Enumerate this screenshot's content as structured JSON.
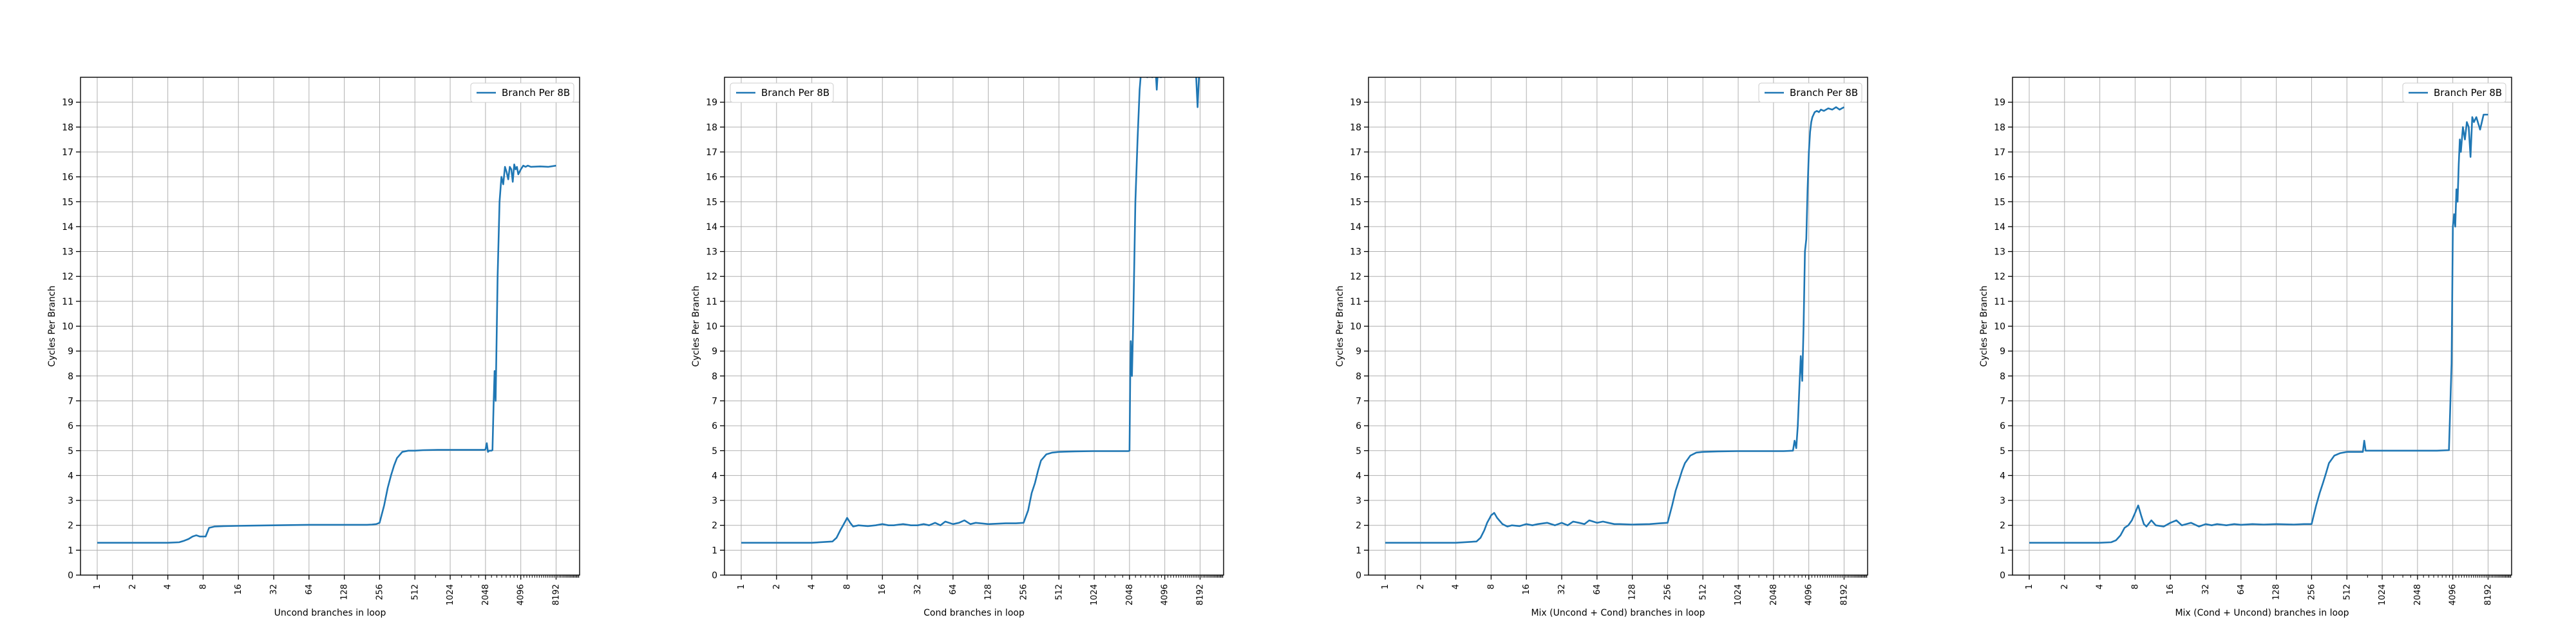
{
  "chart_data": [
    {
      "type": "line",
      "xlabel": "Uncond branches in loop",
      "ylabel": "Cycles Per Branch",
      "x_scale": "log2",
      "xlim": [
        0.72,
        13000
      ],
      "ylim": [
        0,
        20
      ],
      "x_ticks": [
        1,
        2,
        4,
        8,
        16,
        32,
        64,
        128,
        256,
        512,
        1024,
        2048,
        4096,
        8192
      ],
      "y_ticks": [
        0,
        1,
        2,
        3,
        4,
        5,
        6,
        7,
        8,
        9,
        10,
        11,
        12,
        13,
        14,
        15,
        16,
        17,
        18,
        19
      ],
      "grid": true,
      "legend_position": "upper right",
      "series": [
        {
          "name": "Branch Per 8B",
          "color": "#1f77b4",
          "x": [
            1,
            2,
            4,
            5,
            5.5,
            6,
            6.5,
            7,
            7.5,
            8,
            8.4,
            9,
            10,
            12,
            16,
            32,
            64,
            128,
            200,
            220,
            240,
            256,
            280,
            300,
            320,
            340,
            360,
            400,
            450,
            512,
            600,
            800,
            1024,
            1500,
            2000,
            2048,
            2100,
            2150,
            2200,
            2250,
            2300,
            2350,
            2400,
            2450,
            2500,
            2600,
            2700,
            2800,
            2900,
            3000,
            3100,
            3200,
            3300,
            3400,
            3500,
            3600,
            3700,
            3800,
            3900,
            4096,
            4300,
            4500,
            4700,
            5000,
            6000,
            7000,
            8192
          ],
          "y": [
            1.3,
            1.3,
            1.3,
            1.32,
            1.38,
            1.45,
            1.55,
            1.6,
            1.55,
            1.55,
            1.55,
            1.9,
            1.95,
            1.97,
            1.98,
            2.0,
            2.02,
            2.02,
            2.02,
            2.03,
            2.05,
            2.1,
            2.8,
            3.5,
            4.0,
            4.4,
            4.7,
            4.95,
            5.0,
            5.0,
            5.02,
            5.03,
            5.03,
            5.03,
            5.03,
            5.05,
            5.3,
            4.95,
            5.0,
            5.0,
            5.0,
            5.02,
            6.8,
            8.2,
            7.0,
            12.0,
            15.0,
            16.0,
            15.7,
            16.4,
            16.2,
            15.9,
            16.4,
            16.3,
            15.8,
            16.5,
            16.3,
            16.4,
            16.1,
            16.3,
            16.45,
            16.4,
            16.45,
            16.4,
            16.42,
            16.4,
            16.45
          ]
        }
      ]
    },
    {
      "type": "line",
      "xlabel": "Cond branches in loop",
      "ylabel": "Cycles Per Branch",
      "x_scale": "log2",
      "xlim": [
        0.72,
        13000
      ],
      "ylim": [
        0,
        20
      ],
      "x_ticks": [
        1,
        2,
        4,
        8,
        16,
        32,
        64,
        128,
        256,
        512,
        1024,
        2048,
        4096,
        8192
      ],
      "y_ticks": [
        0,
        1,
        2,
        3,
        4,
        5,
        6,
        7,
        8,
        9,
        10,
        11,
        12,
        13,
        14,
        15,
        16,
        17,
        18,
        19
      ],
      "grid": true,
      "legend_position": "upper left",
      "series": [
        {
          "name": "Branch Per 8B",
          "color": "#1f77b4",
          "x": [
            1,
            2,
            4,
            6,
            6.5,
            7,
            7.4,
            7.8,
            8,
            8.5,
            9,
            10,
            12,
            14,
            16,
            18,
            20,
            24,
            28,
            32,
            36,
            40,
            45,
            50,
            55,
            64,
            72,
            80,
            90,
            100,
            128,
            180,
            220,
            256,
            280,
            300,
            320,
            340,
            360,
            400,
            450,
            512,
            700,
            1000,
            1500,
            2000,
            2048,
            2080,
            2100,
            2150,
            2200,
            2250,
            2300,
            2400,
            2500,
            2600,
            2700,
            2800,
            2900,
            3000,
            3100,
            3200,
            3300,
            3400,
            3500,
            3600,
            3700,
            3800,
            4000,
            4300,
            4600,
            5000,
            5500,
            6000,
            6500,
            7000,
            7500,
            7800,
            8192
          ],
          "y": [
            1.3,
            1.3,
            1.3,
            1.35,
            1.5,
            1.8,
            2.0,
            2.2,
            2.3,
            2.1,
            1.95,
            2.0,
            1.97,
            2.0,
            2.05,
            2.0,
            2.0,
            2.05,
            2.0,
            2.0,
            2.05,
            2.0,
            2.1,
            2.0,
            2.15,
            2.05,
            2.1,
            2.2,
            2.05,
            2.1,
            2.05,
            2.08,
            2.08,
            2.1,
            2.6,
            3.3,
            3.7,
            4.2,
            4.6,
            4.85,
            4.92,
            4.95,
            4.97,
            4.98,
            4.98,
            4.98,
            5.0,
            8.2,
            9.4,
            8.0,
            10.0,
            12.5,
            15.0,
            17.5,
            19.5,
            20.5,
            21.5,
            21.5,
            20.0,
            20.5,
            21.0,
            20.0,
            20.5,
            20.5,
            19.5,
            20.5,
            21.0,
            20.0,
            20.5,
            21.0,
            21.0,
            21.0,
            21.0,
            21.0,
            21.0,
            21.0,
            20.5,
            18.8,
            21.0
          ]
        }
      ]
    },
    {
      "type": "line",
      "xlabel": "Mix (Uncond + Cond) branches in loop",
      "ylabel": "Cycles Per Branch",
      "x_scale": "log2",
      "xlim": [
        0.72,
        13000
      ],
      "ylim": [
        0,
        20
      ],
      "x_ticks": [
        1,
        2,
        4,
        8,
        16,
        32,
        64,
        128,
        256,
        512,
        1024,
        2048,
        4096,
        8192
      ],
      "y_ticks": [
        0,
        1,
        2,
        3,
        4,
        5,
        6,
        7,
        8,
        9,
        10,
        11,
        12,
        13,
        14,
        15,
        16,
        17,
        18,
        19
      ],
      "grid": true,
      "legend_position": "upper right",
      "series": [
        {
          "name": "Branch Per 8B",
          "color": "#1f77b4",
          "x": [
            1,
            2,
            4,
            6,
            6.5,
            7,
            7.4,
            7.8,
            8,
            8.5,
            9,
            10,
            11,
            12,
            14,
            16,
            18,
            20,
            24,
            28,
            32,
            36,
            40,
            45,
            50,
            55,
            64,
            72,
            80,
            90,
            100,
            128,
            180,
            220,
            256,
            280,
            300,
            320,
            340,
            360,
            400,
            450,
            512,
            700,
            1000,
            1500,
            2000,
            2500,
            3000,
            3100,
            3200,
            3300,
            3400,
            3500,
            3600,
            3700,
            3800,
            3900,
            4000,
            4100,
            4200,
            4300,
            4400,
            4500,
            4600,
            4800,
            5000,
            5200,
            5500,
            6000,
            6500,
            7000,
            7500,
            8192
          ],
          "y": [
            1.3,
            1.3,
            1.3,
            1.35,
            1.5,
            1.8,
            2.1,
            2.3,
            2.4,
            2.5,
            2.3,
            2.05,
            1.95,
            2.0,
            1.97,
            2.05,
            2.0,
            2.05,
            2.1,
            2.0,
            2.1,
            2.0,
            2.15,
            2.1,
            2.05,
            2.2,
            2.1,
            2.15,
            2.1,
            2.05,
            2.05,
            2.03,
            2.05,
            2.08,
            2.1,
            2.8,
            3.4,
            3.8,
            4.2,
            4.5,
            4.8,
            4.92,
            4.95,
            4.97,
            4.98,
            4.98,
            4.98,
            4.98,
            5.0,
            5.4,
            5.1,
            6.0,
            7.5,
            8.8,
            7.8,
            10.0,
            13.0,
            13.5,
            15.5,
            17.0,
            17.8,
            18.2,
            18.4,
            18.5,
            18.6,
            18.65,
            18.6,
            18.7,
            18.65,
            18.75,
            18.7,
            18.8,
            18.7,
            18.8
          ]
        }
      ]
    },
    {
      "type": "line",
      "xlabel": "Mix (Cond + Uncond) branches in loop",
      "ylabel": "Cycles Per Branch",
      "x_scale": "log2",
      "xlim": [
        0.72,
        13000
      ],
      "ylim": [
        0,
        20
      ],
      "x_ticks": [
        1,
        2,
        4,
        8,
        16,
        32,
        64,
        128,
        256,
        512,
        1024,
        2048,
        4096,
        8192
      ],
      "y_ticks": [
        0,
        1,
        2,
        3,
        4,
        5,
        6,
        7,
        8,
        9,
        10,
        11,
        12,
        13,
        14,
        15,
        16,
        17,
        18,
        19
      ],
      "grid": true,
      "legend_position": "upper right",
      "series": [
        {
          "name": "Branch Per 8B",
          "color": "#1f77b4",
          "x": [
            1,
            2,
            4,
            5,
            5.5,
            6,
            6.5,
            7,
            7.5,
            8,
            8.5,
            9,
            9.5,
            10,
            11,
            12,
            14,
            16,
            18,
            20,
            24,
            28,
            32,
            36,
            40,
            48,
            56,
            64,
            80,
            100,
            128,
            180,
            220,
            256,
            280,
            300,
            320,
            340,
            360,
            400,
            450,
            512,
            700,
            720,
            740,
            800,
            1024,
            1500,
            2000,
            3000,
            3800,
            4000,
            4100,
            4200,
            4300,
            4400,
            4500,
            4600,
            4700,
            4800,
            5000,
            5200,
            5400,
            5600,
            5800,
            6000,
            6200,
            6500,
            7000,
            7500,
            8192
          ],
          "y": [
            1.3,
            1.3,
            1.3,
            1.32,
            1.4,
            1.6,
            1.9,
            2.0,
            2.2,
            2.5,
            2.8,
            2.4,
            2.05,
            1.95,
            2.2,
            2.0,
            1.95,
            2.1,
            2.2,
            2.0,
            2.1,
            1.95,
            2.05,
            2.0,
            2.05,
            2.0,
            2.05,
            2.02,
            2.05,
            2.03,
            2.05,
            2.03,
            2.05,
            2.05,
            2.8,
            3.3,
            3.7,
            4.1,
            4.5,
            4.8,
            4.9,
            4.95,
            4.95,
            5.4,
            5.0,
            5.0,
            5.0,
            5.0,
            5.0,
            5.0,
            5.02,
            8.5,
            14.0,
            14.5,
            14.0,
            15.5,
            15.0,
            16.5,
            17.5,
            17.0,
            18.0,
            17.5,
            18.2,
            18.0,
            16.8,
            18.4,
            18.2,
            18.4,
            17.9,
            18.5,
            18.5
          ]
        }
      ]
    }
  ]
}
